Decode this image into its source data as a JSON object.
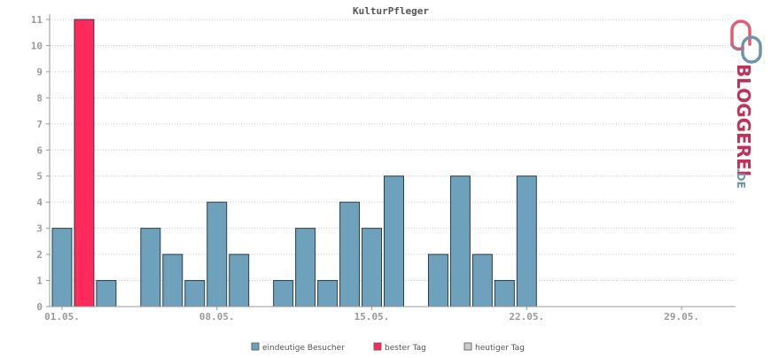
{
  "chart_data": {
    "type": "bar",
    "title": "KulturPfleger",
    "xlabel": "",
    "ylabel": "",
    "y_ticks": [
      "0",
      "1",
      "2",
      "3",
      "4",
      "5",
      "6",
      "7",
      "8",
      "9",
      "10",
      "11"
    ],
    "x_tick_labels": [
      "01.05.",
      "08.05.",
      "15.05.",
      "22.05.",
      "29.05."
    ],
    "x_tick_days": [
      1,
      8,
      15,
      22,
      29
    ],
    "days": [
      1,
      2,
      3,
      4,
      5,
      6,
      7,
      8,
      9,
      10,
      11,
      12,
      13,
      14,
      15,
      16,
      17,
      18,
      19,
      20,
      21,
      22,
      23,
      24,
      25,
      26,
      27,
      28,
      29,
      30,
      31
    ],
    "series": [
      {
        "name": "eindeutige Besucher",
        "color": "#6ea1bb",
        "values": [
          3,
          11,
          1,
          0,
          3,
          2,
          1,
          4,
          2,
          0,
          1,
          3,
          1,
          4,
          3,
          5,
          0,
          2,
          5,
          2,
          1,
          5,
          0,
          0,
          0,
          0,
          0,
          0,
          0,
          0,
          0
        ]
      }
    ],
    "best_day": 2,
    "best_color": "#ff2a5a",
    "legend": [
      {
        "label": "eindeutige Besucher",
        "color": "#6ea1bb"
      },
      {
        "label": "bester Tag",
        "color": "#ff2a5a"
      },
      {
        "label": "heutiger Tag",
        "color": "#cccccc"
      }
    ],
    "legend_position": "bottom",
    "grid": true
  },
  "logo": {
    "text_main": "BLOGGEREI",
    "text_suffix": ".DE"
  }
}
